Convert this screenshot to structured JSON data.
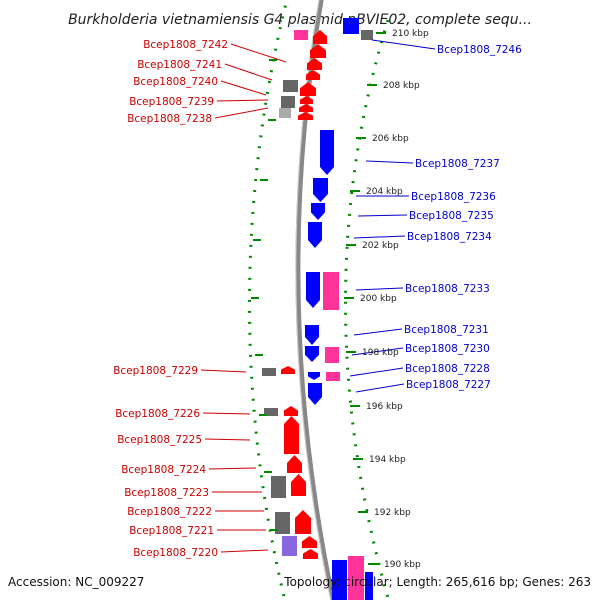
{
  "title": "Burkholderia vietnamiensis G4 plasmid pBVIE02, complete sequ...",
  "footer": {
    "accession": "Accession: NC_009227",
    "summary": "Topology: circular; Length: 265,616 bp; Genes: 263"
  },
  "colors": {
    "forward_label": "#cc0000",
    "reverse_label": "#0000cc",
    "forward_cds": "#ff0000",
    "reverse_cds": "#0000ff",
    "rna": "#ff3399",
    "other": "#666666",
    "light_other": "#aaaaaa",
    "violet": "#8866dd",
    "backbone": "#888888",
    "ticks": "#008800"
  },
  "kbp_ticks": [
    "210 kbp",
    "208 kbp",
    "206 kbp",
    "204 kbp",
    "202 kbp",
    "200 kbp",
    "198 kbp",
    "196 kbp",
    "194 kbp",
    "192 kbp",
    "190 kbp"
  ],
  "left_labels": [
    "Bcep1808_7242",
    "Bcep1808_7241",
    "Bcep1808_7240",
    "Bcep1808_7239",
    "Bcep1808_7238",
    "Bcep1808_7229",
    "Bcep1808_7226",
    "Bcep1808_7225",
    "Bcep1808_7224",
    "Bcep1808_7223",
    "Bcep1808_7222",
    "Bcep1808_7221",
    "Bcep1808_7220"
  ],
  "right_labels": [
    "Bcep1808_7246",
    "Bcep1808_7237",
    "Bcep1808_7236",
    "Bcep1808_7235",
    "Bcep1808_7234",
    "Bcep1808_7233",
    "Bcep1808_7231",
    "Bcep1808_7230",
    "Bcep1808_7228",
    "Bcep1808_7227"
  ]
}
